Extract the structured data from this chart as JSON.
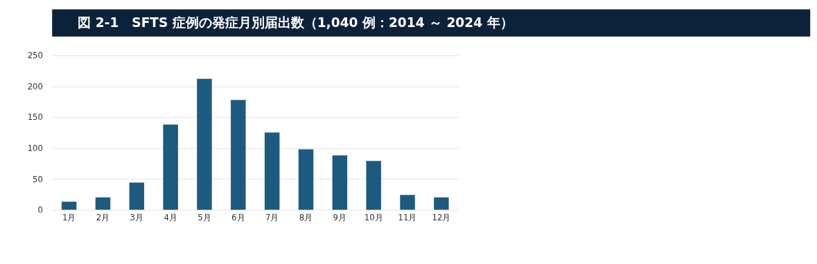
{
  "chart_data": {
    "type": "bar",
    "title": "図 2-1　SFTS 症例の発症月別届出数（1,040 例：2014 ～ 2024 年）",
    "categories": [
      "1月",
      "2月",
      "3月",
      "4月",
      "5月",
      "6月",
      "7月",
      "8月",
      "9月",
      "10月",
      "11月",
      "12月"
    ],
    "values": [
      13,
      20,
      44,
      138,
      212,
      178,
      125,
      98,
      88,
      79,
      24,
      20
    ],
    "color": "#1d5a80",
    "ylim": [
      0,
      250
    ],
    "yticks": [
      0,
      50,
      100,
      150,
      200,
      250
    ],
    "grid": "y"
  }
}
